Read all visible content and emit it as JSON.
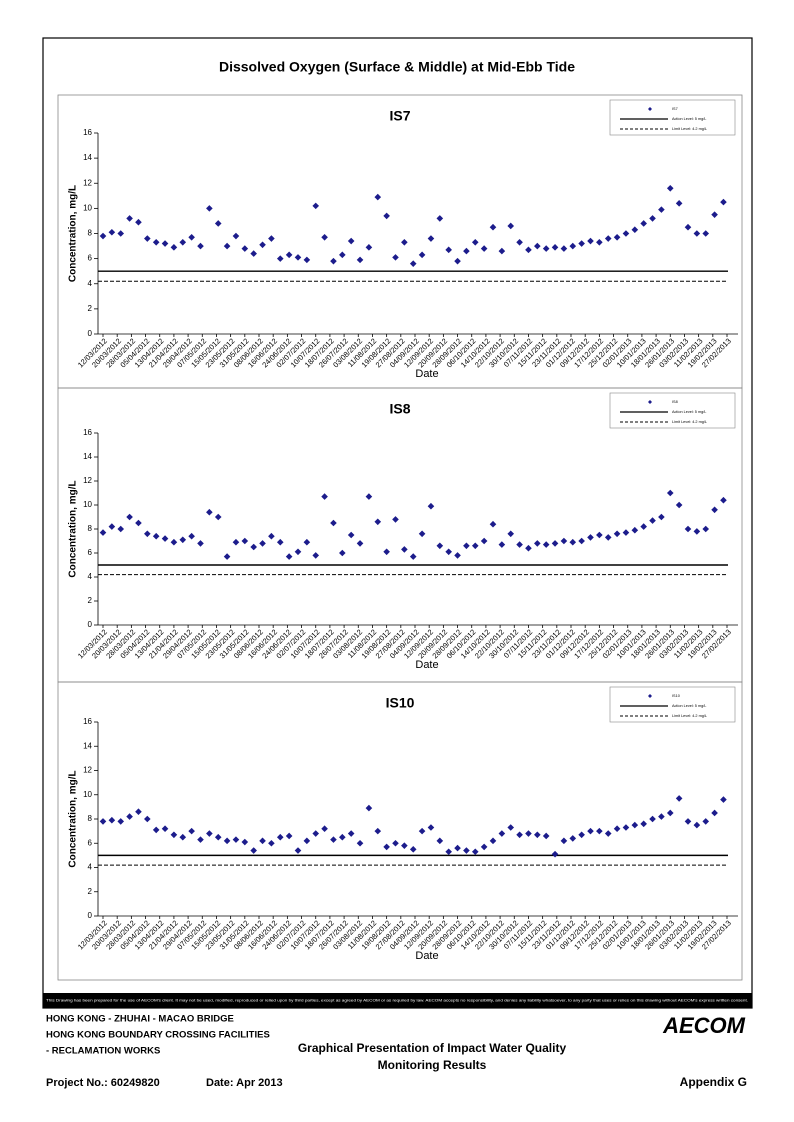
{
  "page": {
    "title": "Dissolved Oxygen (Surface & Middle) at Mid-Ebb Tide",
    "disclaimer": "This Drawing has been prepared for the use of AECOM's client. It may not be used, modified, reproduced or relied upon by third parties, except as agreed by AECOM or as required by law. AECOM accepts no responsibility, and denies any liability whatsoever, to any party that uses or relies on this drawing without AECOM's express written consent.",
    "project_lines": [
      "HONG KONG - ZHUHAI - MACAO BRIDGE",
      "HONG KONG BOUNDARY CROSSING FACILITIES",
      "- RECLAMATION WORKS"
    ],
    "logo": "AECOM",
    "caption": [
      "Graphical Presentation of Impact Water Quality",
      "Monitoring Results"
    ],
    "project_no": "Project No.: 60249820",
    "date": "Date: Apr 2013",
    "appendix": "Appendix G"
  },
  "chart_data": [
    {
      "type": "scatter",
      "title": "IS7",
      "x_label": "Date",
      "y_label": "Concentration, mg/L",
      "ylim": [
        0,
        16
      ],
      "yticks": [
        0,
        2,
        4,
        6,
        8,
        10,
        12,
        14,
        16
      ],
      "xlim": [
        "12/03/2012",
        "27/02/2013"
      ],
      "xticks": [
        "12/03/2012",
        "20/03/2012",
        "28/03/2012",
        "05/04/2012",
        "13/04/2012",
        "21/04/2012",
        "29/04/2012",
        "07/05/2012",
        "15/05/2012",
        "23/05/2012",
        "31/05/2012",
        "08/06/2012",
        "16/06/2012",
        "24/06/2012",
        "02/07/2012",
        "10/07/2012",
        "18/07/2012",
        "26/07/2012",
        "03/08/2012",
        "11/08/2012",
        "19/08/2012",
        "27/08/2012",
        "04/09/2012",
        "12/09/2012",
        "20/09/2012",
        "28/09/2012",
        "06/10/2012",
        "14/10/2012",
        "22/10/2012",
        "30/10/2012",
        "07/11/2012",
        "15/11/2012",
        "23/11/2012",
        "01/12/2012",
        "09/12/2012",
        "17/12/2012",
        "25/12/2012",
        "02/01/2013",
        "10/01/2013",
        "18/01/2013",
        "26/01/2013",
        "03/02/2013",
        "11/02/2013",
        "19/02/2013",
        "27/02/2013"
      ],
      "series": [
        {
          "name": "IS7",
          "color": "#1c1c8c",
          "x": [
            "12/03/2012",
            "17/03/2012",
            "22/03/2012",
            "27/03/2012",
            "01/04/2012",
            "06/04/2012",
            "11/04/2012",
            "16/04/2012",
            "21/04/2012",
            "26/04/2012",
            "01/05/2012",
            "06/05/2012",
            "11/05/2012",
            "16/05/2012",
            "21/05/2012",
            "26/05/2012",
            "31/05/2012",
            "05/06/2012",
            "10/06/2012",
            "15/06/2012",
            "20/06/2012",
            "25/06/2012",
            "30/06/2012",
            "05/07/2012",
            "10/07/2012",
            "15/07/2012",
            "20/07/2012",
            "25/07/2012",
            "30/07/2012",
            "04/08/2012",
            "09/08/2012",
            "14/08/2012",
            "19/08/2012",
            "24/08/2012",
            "29/08/2012",
            "03/09/2012",
            "08/09/2012",
            "13/09/2012",
            "18/09/2012",
            "23/09/2012",
            "28/09/2012",
            "03/10/2012",
            "08/10/2012",
            "13/10/2012",
            "18/10/2012",
            "23/10/2012",
            "28/10/2012",
            "02/11/2012",
            "07/11/2012",
            "12/11/2012",
            "17/11/2012",
            "22/11/2012",
            "27/11/2012",
            "02/12/2012",
            "07/12/2012",
            "12/12/2012",
            "17/12/2012",
            "22/12/2012",
            "27/12/2012",
            "01/01/2013",
            "06/01/2013",
            "11/01/2013",
            "16/01/2013",
            "21/01/2013",
            "26/01/2013",
            "31/01/2013",
            "05/02/2013",
            "10/02/2013",
            "15/02/2013",
            "20/02/2013",
            "25/02/2013"
          ],
          "values": [
            7.8,
            8.1,
            8.0,
            9.2,
            8.9,
            7.6,
            7.3,
            7.2,
            6.9,
            7.3,
            7.7,
            7.0,
            10.0,
            8.8,
            7.0,
            7.8,
            6.8,
            6.4,
            7.1,
            7.6,
            6.0,
            6.3,
            6.1,
            5.9,
            10.2,
            7.7,
            5.8,
            6.3,
            7.4,
            5.9,
            6.9,
            10.9,
            9.4,
            6.1,
            7.3,
            5.6,
            6.3,
            7.6,
            9.2,
            6.7,
            5.8,
            6.6,
            7.3,
            6.8,
            8.5,
            6.6,
            8.6,
            7.3,
            6.7,
            7.0,
            6.8,
            6.9,
            6.8,
            7.0,
            7.2,
            7.4,
            7.3,
            7.6,
            7.7,
            8.0,
            8.3,
            8.8,
            9.2,
            9.9,
            11.6,
            10.4,
            8.5,
            8.0,
            8.0,
            9.5,
            10.5
          ]
        }
      ],
      "action_level": {
        "name": "Action Level: 5 mg/L",
        "value": 5
      },
      "limit_level": {
        "name": "Limit Level: 4.2 mg/L",
        "value": 4.2
      }
    },
    {
      "type": "scatter",
      "title": "IS8",
      "x_label": "Date",
      "y_label": "Concentration, mg/L",
      "ylim": [
        0,
        16
      ],
      "yticks": [
        0,
        2,
        4,
        6,
        8,
        10,
        12,
        14,
        16
      ],
      "xlim": [
        "12/03/2012",
        "27/02/2013"
      ],
      "xticks": [
        "12/03/2012",
        "20/03/2012",
        "28/03/2012",
        "05/04/2012",
        "13/04/2012",
        "21/04/2012",
        "29/04/2012",
        "07/05/2012",
        "15/05/2012",
        "23/05/2012",
        "31/05/2012",
        "08/06/2012",
        "16/06/2012",
        "24/06/2012",
        "02/07/2012",
        "10/07/2012",
        "18/07/2012",
        "26/07/2012",
        "03/08/2012",
        "11/08/2012",
        "19/08/2012",
        "27/08/2012",
        "04/09/2012",
        "12/09/2012",
        "20/09/2012",
        "28/09/2012",
        "06/10/2012",
        "14/10/2012",
        "22/10/2012",
        "30/10/2012",
        "07/11/2012",
        "15/11/2012",
        "23/11/2012",
        "01/12/2012",
        "09/12/2012",
        "17/12/2012",
        "25/12/2012",
        "02/01/2013",
        "10/01/2013",
        "18/01/2013",
        "26/01/2013",
        "03/02/2013",
        "11/02/2013",
        "19/02/2013",
        "27/02/2013"
      ],
      "series": [
        {
          "name": "IS8",
          "color": "#1c1c8c",
          "x": [
            "12/03/2012",
            "17/03/2012",
            "22/03/2012",
            "27/03/2012",
            "01/04/2012",
            "06/04/2012",
            "11/04/2012",
            "16/04/2012",
            "21/04/2012",
            "26/04/2012",
            "01/05/2012",
            "06/05/2012",
            "11/05/2012",
            "16/05/2012",
            "21/05/2012",
            "26/05/2012",
            "31/05/2012",
            "05/06/2012",
            "10/06/2012",
            "15/06/2012",
            "20/06/2012",
            "25/06/2012",
            "30/06/2012",
            "05/07/2012",
            "10/07/2012",
            "15/07/2012",
            "20/07/2012",
            "25/07/2012",
            "30/07/2012",
            "04/08/2012",
            "09/08/2012",
            "14/08/2012",
            "19/08/2012",
            "24/08/2012",
            "29/08/2012",
            "03/09/2012",
            "08/09/2012",
            "13/09/2012",
            "18/09/2012",
            "23/09/2012",
            "28/09/2012",
            "03/10/2012",
            "08/10/2012",
            "13/10/2012",
            "18/10/2012",
            "23/10/2012",
            "28/10/2012",
            "02/11/2012",
            "07/11/2012",
            "12/11/2012",
            "17/11/2012",
            "22/11/2012",
            "27/11/2012",
            "02/12/2012",
            "07/12/2012",
            "12/12/2012",
            "17/12/2012",
            "22/12/2012",
            "27/12/2012",
            "01/01/2013",
            "06/01/2013",
            "11/01/2013",
            "16/01/2013",
            "21/01/2013",
            "26/01/2013",
            "31/01/2013",
            "05/02/2013",
            "10/02/2013",
            "15/02/2013",
            "20/02/2013",
            "25/02/2013"
          ],
          "values": [
            7.7,
            8.2,
            8.0,
            9.0,
            8.5,
            7.6,
            7.4,
            7.2,
            6.9,
            7.1,
            7.4,
            6.8,
            9.4,
            9.0,
            5.7,
            6.9,
            7.0,
            6.5,
            6.8,
            7.4,
            6.9,
            5.7,
            6.1,
            6.9,
            5.8,
            10.7,
            8.5,
            6.0,
            7.5,
            6.8,
            10.7,
            8.6,
            6.1,
            8.8,
            6.3,
            5.7,
            7.6,
            9.9,
            6.6,
            6.1,
            5.8,
            6.6,
            6.6,
            7.0,
            8.4,
            6.7,
            7.6,
            6.7,
            6.4,
            6.8,
            6.7,
            6.8,
            7.0,
            6.9,
            7.0,
            7.3,
            7.5,
            7.3,
            7.6,
            7.7,
            7.9,
            8.2,
            8.7,
            9.0,
            11.0,
            10.0,
            8.0,
            7.8,
            8.0,
            9.6,
            10.4
          ]
        }
      ],
      "action_level": {
        "name": "Action Level: 5 mg/L",
        "value": 5
      },
      "limit_level": {
        "name": "Limit Level: 4.2 mg/L",
        "value": 4.2
      }
    },
    {
      "type": "scatter",
      "title": "IS10",
      "x_label": "Date",
      "y_label": "Concentration, mg/L",
      "ylim": [
        0,
        16
      ],
      "yticks": [
        0,
        2,
        4,
        6,
        8,
        10,
        12,
        14,
        16
      ],
      "xlim": [
        "12/03/2012",
        "27/02/2013"
      ],
      "xticks": [
        "12/03/2012",
        "20/03/2012",
        "28/03/2012",
        "05/04/2012",
        "13/04/2012",
        "21/04/2012",
        "29/04/2012",
        "07/05/2012",
        "15/05/2012",
        "23/05/2012",
        "31/05/2012",
        "08/06/2012",
        "16/06/2012",
        "24/06/2012",
        "02/07/2012",
        "10/07/2012",
        "18/07/2012",
        "26/07/2012",
        "03/08/2012",
        "11/08/2012",
        "19/08/2012",
        "27/08/2012",
        "04/09/2012",
        "12/09/2012",
        "20/09/2012",
        "28/09/2012",
        "06/10/2012",
        "14/10/2012",
        "22/10/2012",
        "30/10/2012",
        "07/11/2012",
        "15/11/2012",
        "23/11/2012",
        "01/12/2012",
        "09/12/2012",
        "17/12/2012",
        "25/12/2012",
        "02/01/2013",
        "10/01/2013",
        "18/01/2013",
        "26/01/2013",
        "03/02/2013",
        "11/02/2013",
        "19/02/2013",
        "27/02/2013"
      ],
      "series": [
        {
          "name": "IS10",
          "color": "#1c1c8c",
          "x": [
            "12/03/2012",
            "17/03/2012",
            "22/03/2012",
            "27/03/2012",
            "01/04/2012",
            "06/04/2012",
            "11/04/2012",
            "16/04/2012",
            "21/04/2012",
            "26/04/2012",
            "01/05/2012",
            "06/05/2012",
            "11/05/2012",
            "16/05/2012",
            "21/05/2012",
            "26/05/2012",
            "31/05/2012",
            "05/06/2012",
            "10/06/2012",
            "15/06/2012",
            "20/06/2012",
            "25/06/2012",
            "30/06/2012",
            "05/07/2012",
            "10/07/2012",
            "15/07/2012",
            "20/07/2012",
            "25/07/2012",
            "30/07/2012",
            "04/08/2012",
            "09/08/2012",
            "14/08/2012",
            "19/08/2012",
            "24/08/2012",
            "29/08/2012",
            "03/09/2012",
            "08/09/2012",
            "13/09/2012",
            "18/09/2012",
            "23/09/2012",
            "28/09/2012",
            "03/10/2012",
            "08/10/2012",
            "13/10/2012",
            "18/10/2012",
            "23/10/2012",
            "28/10/2012",
            "02/11/2012",
            "07/11/2012",
            "12/11/2012",
            "17/11/2012",
            "22/11/2012",
            "27/11/2012",
            "02/12/2012",
            "07/12/2012",
            "12/12/2012",
            "17/12/2012",
            "22/12/2012",
            "27/12/2012",
            "01/01/2013",
            "06/01/2013",
            "11/01/2013",
            "16/01/2013",
            "21/01/2013",
            "26/01/2013",
            "31/01/2013",
            "05/02/2013",
            "10/02/2013",
            "15/02/2013",
            "20/02/2013",
            "25/02/2013"
          ],
          "values": [
            7.8,
            7.9,
            7.8,
            8.2,
            8.6,
            8.0,
            7.1,
            7.2,
            6.7,
            6.5,
            7.0,
            6.3,
            6.8,
            6.5,
            6.2,
            6.3,
            6.1,
            5.4,
            6.2,
            6.0,
            6.5,
            6.6,
            5.4,
            6.2,
            6.8,
            7.2,
            6.3,
            6.5,
            6.8,
            6.0,
            8.9,
            7.0,
            5.7,
            6.0,
            5.8,
            5.5,
            7.0,
            7.3,
            6.2,
            5.3,
            5.6,
            5.4,
            5.3,
            5.7,
            6.2,
            6.8,
            7.3,
            6.7,
            6.8,
            6.7,
            6.6,
            5.1,
            6.2,
            6.4,
            6.7,
            7.0,
            7.0,
            6.8,
            7.2,
            7.3,
            7.5,
            7.6,
            8.0,
            8.2,
            8.5,
            9.7,
            7.8,
            7.5,
            7.8,
            8.5,
            9.6
          ]
        }
      ],
      "action_level": {
        "name": "Action Level: 5 mg/L",
        "value": 5
      },
      "limit_level": {
        "name": "Limit Level: 4.2 mg/L",
        "value": 4.2
      }
    }
  ]
}
